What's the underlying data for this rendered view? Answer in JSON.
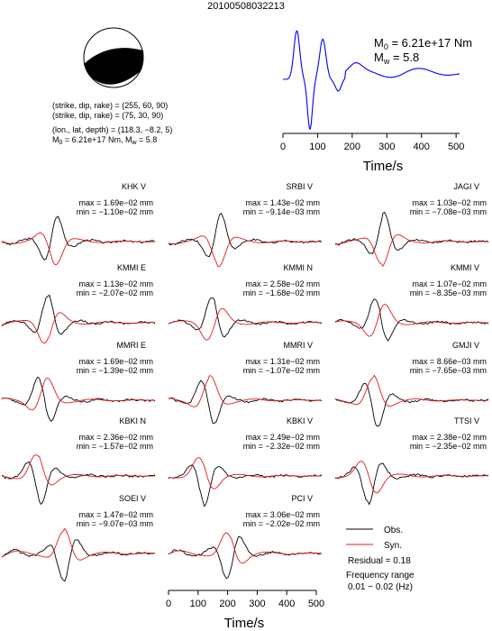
{
  "event_id": "20100508032213",
  "mechanism": {
    "plane1": "(strike, dip, rake) = (255, 60, 90)",
    "plane2": "(strike, dip, rake) = (75, 30, 90)",
    "location": "(lon., lat, depth) = (118.3, −8.2, 5)",
    "moment_line": {
      "m0_prefix": "M",
      "m0_sub": "0",
      "m0_mid": " = 6.21e+17 Nm, M",
      "mw_sub": "w",
      "mw_suffix": " = 5.8"
    }
  },
  "stf_panel": {
    "m0": {
      "prefix": "M",
      "sub": "0",
      "suffix": " = 6.21e+17 Nm"
    },
    "mw": {
      "prefix": "M",
      "sub": "w",
      "suffix": " = 5.8"
    },
    "xlabel": "Time/s",
    "ticks": [
      "0",
      "100",
      "200",
      "300",
      "400",
      "500"
    ]
  },
  "bottom_axis": {
    "xlabel": "Time/s",
    "ticks": [
      "0",
      "100",
      "200",
      "300",
      "400",
      "500"
    ]
  },
  "legend": {
    "obs": "Obs.",
    "syn": "Syn.",
    "residual": "Residual = 0.18",
    "freq_title": "Frequency range",
    "freq_value": "0.01 − 0.02 (Hz)",
    "obs_color": "#000000",
    "syn_color": "#e41a1c"
  },
  "stations": [
    {
      "name": "KHK V",
      "max": "max = 1.69e−02 mm",
      "min": "min = −1.10e−02 mm"
    },
    {
      "name": "SRBI V",
      "max": "max = 1.43e−02 mm",
      "min": "min = −9.14e−03 mm"
    },
    {
      "name": "JAGI V",
      "max": "max = 1.03e−02 mm",
      "min": "min = −7.08e−03 mm"
    },
    {
      "name": "KMMI E",
      "max": "max = 1.13e−02 mm",
      "min": "min = −2.07e−02 mm"
    },
    {
      "name": "KMMI N",
      "max": "max = 2.58e−02 mm",
      "min": "min = −1.68e−02 mm"
    },
    {
      "name": "KMMI V",
      "max": "max = 1.07e−02 mm",
      "min": "min = −8.35e−03 mm"
    },
    {
      "name": "MMRI E",
      "max": "max = 1.69e−02 mm",
      "min": "min = −1.39e−02 mm"
    },
    {
      "name": "MMRI V",
      "max": "max = 1.31e−02 mm",
      "min": "min = −1.07e−02 mm"
    },
    {
      "name": "GMJI V",
      "max": "max = 8.66e−03 mm",
      "min": "min = −7.65e−03 mm"
    },
    {
      "name": "KBKI N",
      "max": "max = 2.36e−02 mm",
      "min": "min = −1.57e−02 mm"
    },
    {
      "name": "KBKI V",
      "max": "max = 2.49e−02 mm",
      "min": "min = −2.32e−02 mm"
    },
    {
      "name": "TTSI V",
      "max": "max = 2.38e−02 mm",
      "min": "min = −2.35e−02 mm"
    },
    {
      "name": "SOEI V",
      "max": "max = 1.47e−02 mm",
      "min": "min = −9.07e−03 mm"
    },
    {
      "name": "PCI V",
      "max": "max = 3.06e−02 mm",
      "min": "min = −2.02e−02 mm"
    }
  ]
}
